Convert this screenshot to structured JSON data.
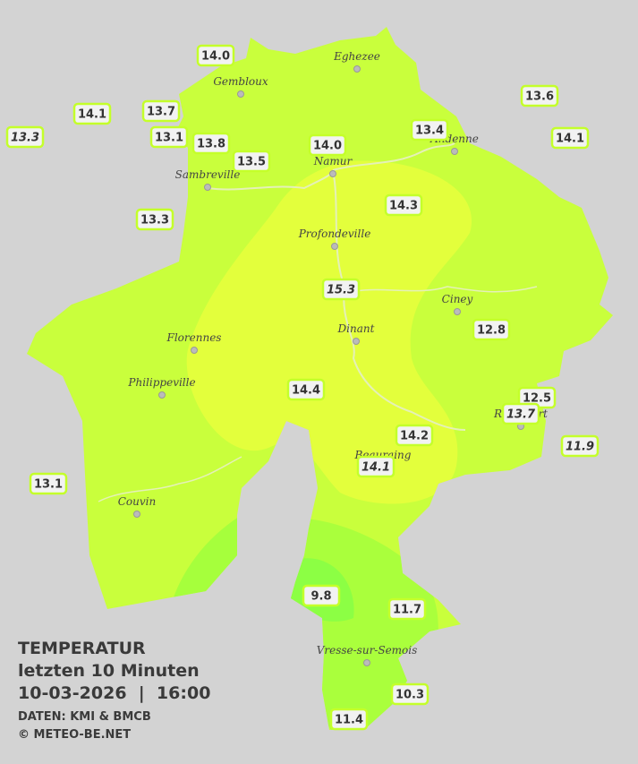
{
  "title": "TEMPERATUR",
  "subtitle": "letzten 10 Minuten",
  "timestamp": "10-03-2026  |  16:00",
  "source": "DATEN: KMI & BMCB",
  "copyright": "© METEO-BE.NET",
  "cities": [
    "Eghezee",
    "Gembloux",
    "Andenne",
    "Namur",
    "Sambreville",
    "Profondeville",
    "Ciney",
    "Dinant",
    "Florennes",
    "Philippeville",
    "Rochefort",
    "Beauraing",
    "Couvin",
    "Vresse-sur-Semois"
  ],
  "stations": [
    {
      "label": "14.0",
      "italic": false
    },
    {
      "label": "14.1",
      "italic": false
    },
    {
      "label": "13.7",
      "italic": false
    },
    {
      "label": "13.3",
      "italic": true
    },
    {
      "label": "13.1",
      "italic": false
    },
    {
      "label": "13.8",
      "italic": false
    },
    {
      "label": "13.5",
      "italic": false
    },
    {
      "label": "14.0",
      "italic": false
    },
    {
      "label": "13.4",
      "italic": false
    },
    {
      "label": "13.6",
      "italic": false
    },
    {
      "label": "14.1",
      "italic": false
    },
    {
      "label": "14.3",
      "italic": false
    },
    {
      "label": "13.3",
      "italic": false
    },
    {
      "label": "15.3",
      "italic": true
    },
    {
      "label": "12.8",
      "italic": false
    },
    {
      "label": "14.4",
      "italic": false
    },
    {
      "label": "12.5",
      "italic": false
    },
    {
      "label": "13.7",
      "italic": true
    },
    {
      "label": "14.2",
      "italic": false
    },
    {
      "label": "11.9",
      "italic": true
    },
    {
      "label": "14.1",
      "italic": true
    },
    {
      "label": "13.1",
      "italic": false
    },
    {
      "label": "9.8",
      "italic": false
    },
    {
      "label": "11.7",
      "italic": false
    },
    {
      "label": "10.3",
      "italic": false
    },
    {
      "label": "11.4",
      "italic": false
    }
  ]
}
